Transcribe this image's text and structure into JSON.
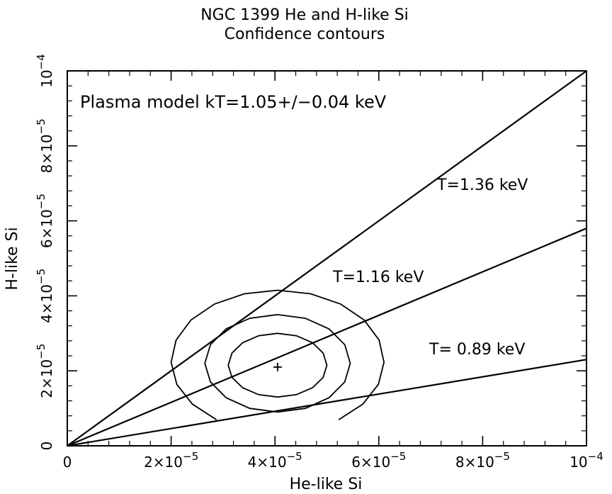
{
  "chart_data": {
    "type": "line",
    "title": "NGC 1399 He and H-like Si",
    "subtitle": "Confidence contours",
    "xlabel": "He-like Si",
    "ylabel": "H-like Si",
    "xlim": [
      0,
      0.0001
    ],
    "ylim": [
      0,
      0.0001
    ],
    "x_ticks": [
      {
        "value": 0,
        "mantissa": "0",
        "exp": ""
      },
      {
        "value": 2e-05,
        "mantissa": "2×10",
        "exp": "−5"
      },
      {
        "value": 4e-05,
        "mantissa": "4×10",
        "exp": "−5"
      },
      {
        "value": 6e-05,
        "mantissa": "6×10",
        "exp": "−5"
      },
      {
        "value": 8e-05,
        "mantissa": "8×10",
        "exp": "−5"
      },
      {
        "value": 0.0001,
        "mantissa": "10",
        "exp": "−4"
      }
    ],
    "y_ticks": [
      {
        "value": 0,
        "mantissa": "0",
        "exp": ""
      },
      {
        "value": 2e-05,
        "mantissa": "2×10",
        "exp": "−5"
      },
      {
        "value": 4e-05,
        "mantissa": "4×10",
        "exp": "−5"
      },
      {
        "value": 6e-05,
        "mantissa": "6×10",
        "exp": "−5"
      },
      {
        "value": 8e-05,
        "mantissa": "8×10",
        "exp": "−5"
      },
      {
        "value": 0.0001,
        "mantissa": "10",
        "exp": "−4"
      }
    ],
    "annotation": "Plasma model kT=1.05+/−0.04 keV",
    "lines": [
      {
        "label": "T=1.36 keV",
        "x": [
          0,
          0.0001
        ],
        "y": [
          0,
          0.0001
        ]
      },
      {
        "label": "T=1.16 keV",
        "x": [
          0,
          0.0001
        ],
        "y": [
          0,
          5.8e-05
        ]
      },
      {
        "label": "T= 0.89 keV",
        "x": [
          0,
          0.0001
        ],
        "y": [
          0,
          2.3e-05
        ]
      }
    ],
    "best_fit": {
      "x": 4.05e-05,
      "y": 2.1e-05
    },
    "contours": [
      {
        "level": "inner",
        "center": [
          4.05e-05,
          2.15e-05
        ],
        "rx": 9.5e-06,
        "ry": 8.5e-06
      },
      {
        "level": "middle",
        "center": [
          4.05e-05,
          2.2e-05
        ],
        "rx": 1.4e-05,
        "ry": 1.3e-05
      },
      {
        "level": "outer",
        "center": [
          4.05e-05,
          2.25e-05
        ],
        "rx": 2.05e-05,
        "ry": 1.9e-05
      }
    ],
    "grid": false
  }
}
